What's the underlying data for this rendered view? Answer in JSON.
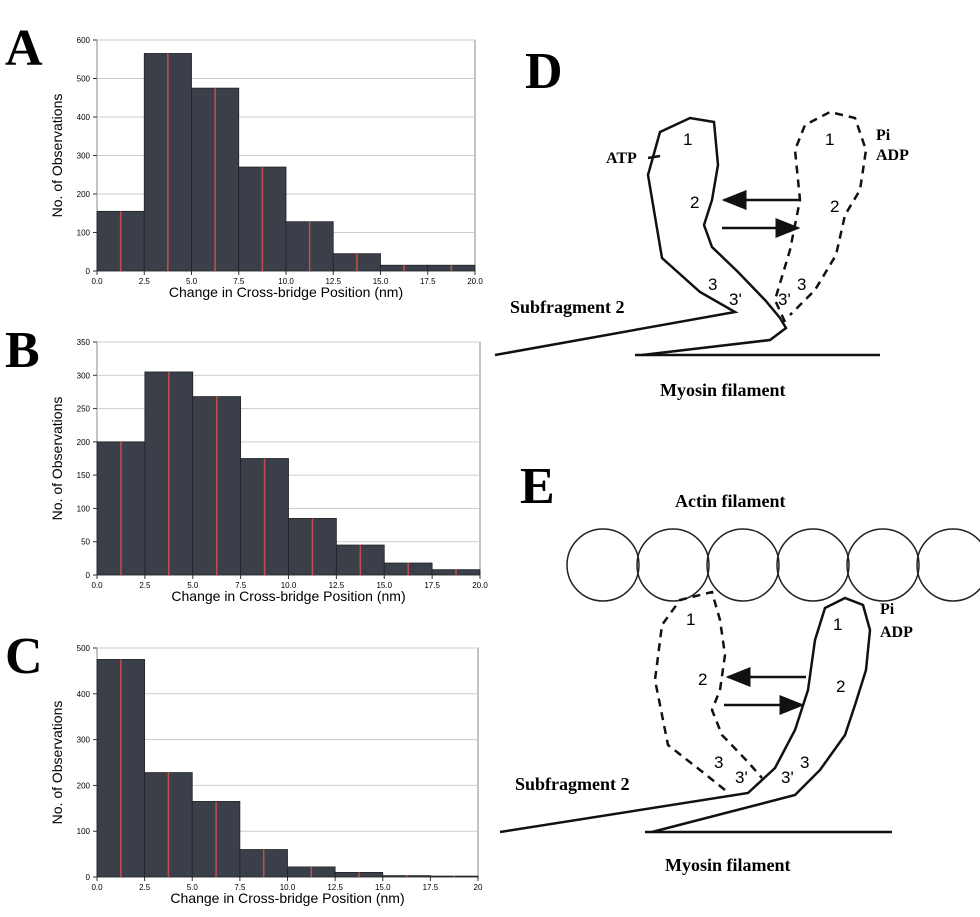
{
  "chart_data": [
    {
      "type": "histogram",
      "label": "A",
      "ylabel": "No. of Observations",
      "xlabel": "Change in Cross-bridge Position (nm)",
      "bins": [
        0,
        2.5,
        5,
        7.5,
        10,
        12.5,
        15,
        17.5,
        20
      ],
      "values": [
        155,
        565,
        475,
        270,
        128,
        45,
        15,
        15
      ],
      "color": "#3b3f4a",
      "xlim": [
        0,
        20
      ],
      "ylim": [
        0,
        600
      ],
      "grid": true,
      "xticks": [
        {
          "value": 0,
          "label": "0.0"
        },
        2.5,
        {
          "value": 5,
          "label": "5.0"
        },
        7.5,
        {
          "value": 10,
          "label": "10.0"
        },
        12.5,
        {
          "value": 15,
          "label": "15.0"
        },
        17.5,
        {
          "value": 20,
          "label": "20.0"
        }
      ],
      "yticks": [
        0,
        100,
        200,
        300,
        400,
        500,
        600
      ]
    },
    {
      "type": "histogram",
      "label": "B",
      "ylabel": "No. of Observations",
      "xlabel": "Change in Cross-bridge Position (nm)",
      "bins": [
        0,
        2.5,
        5,
        7.5,
        10,
        12.5,
        15,
        17.5,
        20
      ],
      "values": [
        200,
        305,
        268,
        175,
        85,
        45,
        18,
        8
      ],
      "color": "#3b3f4a",
      "xlim": [
        0,
        20
      ],
      "ylim": [
        0,
        350
      ],
      "grid": true,
      "xticks": [
        {
          "value": 0,
          "label": "0.0"
        },
        2.5,
        {
          "value": 5,
          "label": "5.0"
        },
        7.5,
        {
          "value": 10,
          "label": "10.0"
        },
        12.5,
        {
          "value": 15,
          "label": "15.0"
        },
        17.5,
        {
          "value": 20,
          "label": "20.0"
        }
      ],
      "yticks": [
        0,
        50,
        100,
        150,
        200,
        250,
        300,
        350
      ]
    },
    {
      "type": "histogram",
      "label": "C",
      "ylabel": "No. of Observations",
      "xlabel": "Change in Cross-bridge Position (nm)",
      "bins": [
        0,
        2.5,
        5,
        7.5,
        10,
        12.5,
        15,
        17.5,
        20
      ],
      "values": [
        475,
        228,
        165,
        60,
        22,
        10,
        3,
        2
      ],
      "color": "#3b3f4a",
      "xlim": [
        0,
        20
      ],
      "ylim": [
        0,
        500
      ],
      "grid": true,
      "xticks": [
        {
          "value": 0,
          "label": "0.0"
        },
        2.5,
        {
          "value": 5,
          "label": "5.0"
        },
        7.5,
        {
          "value": 10,
          "label": "10.0"
        },
        12.5,
        {
          "value": 15,
          "label": "15.0"
        },
        17.5,
        20
      ],
      "yticks": [
        0,
        100,
        200,
        300,
        400,
        500
      ]
    }
  ],
  "diagrams": [
    {
      "label": "D",
      "labels": [
        "ATP",
        "1",
        "2",
        "3",
        "3'",
        "1",
        "2",
        "3'",
        "3",
        "Pi",
        "ADP",
        "Subfragment 2",
        "Myosin filament"
      ]
    },
    {
      "label": "E",
      "labels": [
        "Actin filament",
        "1",
        "2",
        "3",
        "3'",
        "1",
        "2",
        "3'",
        "3",
        "Pi",
        "ADP",
        "Subfragment 2",
        "Myosin filament"
      ]
    }
  ]
}
